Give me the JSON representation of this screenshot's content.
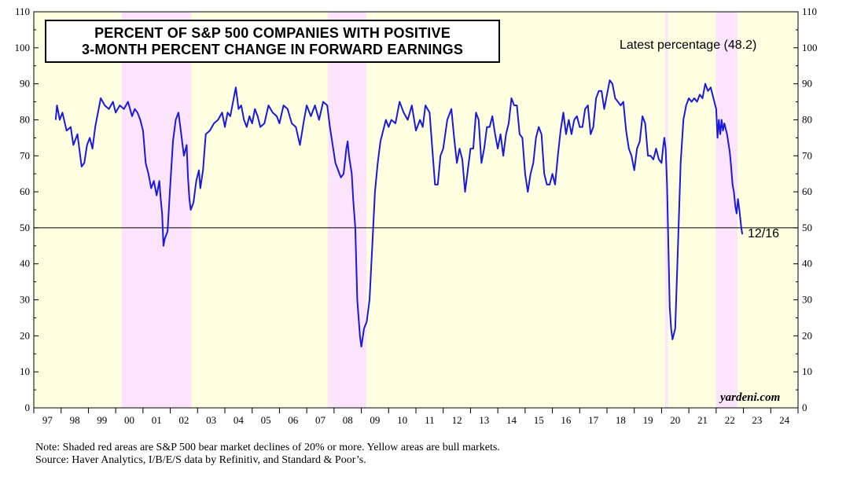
{
  "chart_data": {
    "type": "line",
    "title_lines": [
      "PERCENT OF S&P 500 COMPANIES WITH POSITIVE",
      "3-MONTH PERCENT CHANGE IN FORWARD EARNINGS"
    ],
    "ylim": [
      0,
      110
    ],
    "y_ticks": [
      0,
      10,
      20,
      30,
      40,
      50,
      60,
      70,
      80,
      90,
      100,
      110
    ],
    "x_range": [
      1997,
      2025
    ],
    "x_tick_labels": [
      "97",
      "98",
      "99",
      "00",
      "01",
      "02",
      "03",
      "04",
      "05",
      "06",
      "07",
      "08",
      "09",
      "10",
      "11",
      "12",
      "13",
      "14",
      "15",
      "16",
      "17",
      "18",
      "19",
      "20",
      "21",
      "22",
      "23",
      "24"
    ],
    "reference_line": 50,
    "latest_label": "Latest percentage (48.2)",
    "end_label": "12/16",
    "brand": "yardeni.com",
    "bull_periods": [
      [
        1997.0,
        2000.22
      ],
      [
        2002.77,
        2007.77
      ],
      [
        2009.19,
        2020.13
      ],
      [
        2020.23,
        2021.99
      ],
      [
        2022.78,
        2025.0
      ]
    ],
    "bear_periods": [
      [
        2000.22,
        2002.77
      ],
      [
        2007.77,
        2009.19
      ],
      [
        2020.13,
        2020.23
      ],
      [
        2021.99,
        2022.78
      ]
    ],
    "series": [
      {
        "name": "Percent of S&P 500 companies with positive 3-month change in forward earnings",
        "color": "#1a1adc",
        "points": [
          [
            1997.8,
            80
          ],
          [
            1997.85,
            84
          ],
          [
            1997.95,
            80
          ],
          [
            1998.05,
            82
          ],
          [
            1998.2,
            77
          ],
          [
            1998.35,
            78
          ],
          [
            1998.45,
            73
          ],
          [
            1998.6,
            76
          ],
          [
            1998.75,
            67
          ],
          [
            1998.85,
            68
          ],
          [
            1998.95,
            73
          ],
          [
            1999.05,
            75
          ],
          [
            1999.15,
            72
          ],
          [
            1999.25,
            78
          ],
          [
            1999.45,
            86
          ],
          [
            1999.6,
            84
          ],
          [
            1999.75,
            83
          ],
          [
            1999.9,
            85
          ],
          [
            2000.0,
            82
          ],
          [
            2000.15,
            84
          ],
          [
            2000.3,
            83
          ],
          [
            2000.45,
            85
          ],
          [
            2000.6,
            81
          ],
          [
            2000.7,
            83
          ],
          [
            2000.8,
            82
          ],
          [
            2000.9,
            80
          ],
          [
            2001.0,
            77
          ],
          [
            2001.1,
            68
          ],
          [
            2001.2,
            65
          ],
          [
            2001.3,
            61
          ],
          [
            2001.4,
            63
          ],
          [
            2001.5,
            59
          ],
          [
            2001.6,
            63
          ],
          [
            2001.65,
            58
          ],
          [
            2001.7,
            54
          ],
          [
            2001.75,
            45
          ],
          [
            2001.8,
            47
          ],
          [
            2001.9,
            49
          ],
          [
            2002.0,
            62
          ],
          [
            2002.1,
            74
          ],
          [
            2002.2,
            80
          ],
          [
            2002.3,
            82
          ],
          [
            2002.4,
            76
          ],
          [
            2002.5,
            70
          ],
          [
            2002.6,
            73
          ],
          [
            2002.65,
            64
          ],
          [
            2002.7,
            58
          ],
          [
            2002.75,
            55
          ],
          [
            2002.85,
            57
          ],
          [
            2002.95,
            63
          ],
          [
            2003.05,
            66
          ],
          [
            2003.1,
            61
          ],
          [
            2003.2,
            66
          ],
          [
            2003.3,
            76
          ],
          [
            2003.45,
            77
          ],
          [
            2003.6,
            79
          ],
          [
            2003.75,
            80
          ],
          [
            2003.9,
            82
          ],
          [
            2004.0,
            78
          ],
          [
            2004.1,
            82
          ],
          [
            2004.2,
            81
          ],
          [
            2004.3,
            85
          ],
          [
            2004.4,
            89
          ],
          [
            2004.5,
            83
          ],
          [
            2004.6,
            84
          ],
          [
            2004.7,
            80
          ],
          [
            2004.8,
            78
          ],
          [
            2004.9,
            81
          ],
          [
            2005.0,
            79
          ],
          [
            2005.1,
            83
          ],
          [
            2005.2,
            81
          ],
          [
            2005.3,
            78
          ],
          [
            2005.45,
            79
          ],
          [
            2005.6,
            84
          ],
          [
            2005.75,
            82
          ],
          [
            2005.9,
            81
          ],
          [
            2006.0,
            79
          ],
          [
            2006.15,
            84
          ],
          [
            2006.3,
            83
          ],
          [
            2006.45,
            79
          ],
          [
            2006.6,
            78
          ],
          [
            2006.75,
            73
          ],
          [
            2006.9,
            80
          ],
          [
            2007.0,
            84
          ],
          [
            2007.15,
            81
          ],
          [
            2007.3,
            84
          ],
          [
            2007.45,
            80
          ],
          [
            2007.6,
            85
          ],
          [
            2007.75,
            84
          ],
          [
            2007.85,
            78
          ],
          [
            2007.95,
            73
          ],
          [
            2008.05,
            68
          ],
          [
            2008.15,
            66
          ],
          [
            2008.25,
            64
          ],
          [
            2008.35,
            65
          ],
          [
            2008.45,
            72
          ],
          [
            2008.5,
            74
          ],
          [
            2008.55,
            70
          ],
          [
            2008.65,
            65
          ],
          [
            2008.7,
            58
          ],
          [
            2008.78,
            50
          ],
          [
            2008.85,
            30
          ],
          [
            2008.95,
            20
          ],
          [
            2009.0,
            17
          ],
          [
            2009.1,
            22
          ],
          [
            2009.2,
            24
          ],
          [
            2009.3,
            30
          ],
          [
            2009.4,
            45
          ],
          [
            2009.5,
            60
          ],
          [
            2009.6,
            68
          ],
          [
            2009.7,
            74
          ],
          [
            2009.8,
            77
          ],
          [
            2009.9,
            80
          ],
          [
            2010.0,
            78
          ],
          [
            2010.1,
            80
          ],
          [
            2010.25,
            79
          ],
          [
            2010.4,
            85
          ],
          [
            2010.55,
            82
          ],
          [
            2010.7,
            80
          ],
          [
            2010.85,
            84
          ],
          [
            2011.0,
            77
          ],
          [
            2011.15,
            80
          ],
          [
            2011.25,
            78
          ],
          [
            2011.35,
            84
          ],
          [
            2011.5,
            82
          ],
          [
            2011.6,
            72
          ],
          [
            2011.7,
            62
          ],
          [
            2011.8,
            62
          ],
          [
            2011.9,
            70
          ],
          [
            2012.0,
            72
          ],
          [
            2012.15,
            80
          ],
          [
            2012.3,
            83
          ],
          [
            2012.4,
            75
          ],
          [
            2012.5,
            68
          ],
          [
            2012.6,
            72
          ],
          [
            2012.7,
            69
          ],
          [
            2012.8,
            60
          ],
          [
            2012.9,
            66
          ],
          [
            2013.0,
            72
          ],
          [
            2013.1,
            72
          ],
          [
            2013.2,
            82
          ],
          [
            2013.3,
            80
          ],
          [
            2013.4,
            68
          ],
          [
            2013.5,
            72
          ],
          [
            2013.6,
            78
          ],
          [
            2013.7,
            78
          ],
          [
            2013.8,
            81
          ],
          [
            2013.9,
            76
          ],
          [
            2014.0,
            72
          ],
          [
            2014.1,
            76
          ],
          [
            2014.2,
            70
          ],
          [
            2014.3,
            76
          ],
          [
            2014.4,
            79
          ],
          [
            2014.5,
            86
          ],
          [
            2014.6,
            84
          ],
          [
            2014.7,
            84
          ],
          [
            2014.8,
            76
          ],
          [
            2014.9,
            75
          ],
          [
            2015.0,
            65
          ],
          [
            2015.1,
            60
          ],
          [
            2015.2,
            65
          ],
          [
            2015.3,
            68
          ],
          [
            2015.4,
            75
          ],
          [
            2015.5,
            78
          ],
          [
            2015.6,
            76
          ],
          [
            2015.7,
            65
          ],
          [
            2015.8,
            62
          ],
          [
            2015.9,
            62
          ],
          [
            2016.0,
            65
          ],
          [
            2016.1,
            62
          ],
          [
            2016.2,
            70
          ],
          [
            2016.3,
            77
          ],
          [
            2016.4,
            82
          ],
          [
            2016.5,
            76
          ],
          [
            2016.6,
            80
          ],
          [
            2016.7,
            76
          ],
          [
            2016.8,
            80
          ],
          [
            2016.9,
            81
          ],
          [
            2017.0,
            78
          ],
          [
            2017.1,
            78
          ],
          [
            2017.2,
            83
          ],
          [
            2017.3,
            84
          ],
          [
            2017.4,
            76
          ],
          [
            2017.5,
            78
          ],
          [
            2017.6,
            86
          ],
          [
            2017.7,
            88
          ],
          [
            2017.8,
            88
          ],
          [
            2017.9,
            83
          ],
          [
            2018.0,
            87
          ],
          [
            2018.1,
            91
          ],
          [
            2018.2,
            90
          ],
          [
            2018.3,
            86
          ],
          [
            2018.4,
            85
          ],
          [
            2018.5,
            84
          ],
          [
            2018.6,
            85
          ],
          [
            2018.7,
            77
          ],
          [
            2018.8,
            72
          ],
          [
            2018.9,
            70
          ],
          [
            2019.0,
            66
          ],
          [
            2019.1,
            72
          ],
          [
            2019.2,
            74
          ],
          [
            2019.3,
            81
          ],
          [
            2019.4,
            79
          ],
          [
            2019.5,
            70
          ],
          [
            2019.6,
            70
          ],
          [
            2019.7,
            69
          ],
          [
            2019.8,
            72
          ],
          [
            2019.9,
            69
          ],
          [
            2020.0,
            68
          ],
          [
            2020.05,
            72
          ],
          [
            2020.1,
            75
          ],
          [
            2020.15,
            72
          ],
          [
            2020.2,
            62
          ],
          [
            2020.25,
            45
          ],
          [
            2020.3,
            28
          ],
          [
            2020.35,
            22
          ],
          [
            2020.4,
            19
          ],
          [
            2020.5,
            22
          ],
          [
            2020.6,
            45
          ],
          [
            2020.7,
            68
          ],
          [
            2020.8,
            80
          ],
          [
            2020.9,
            84
          ],
          [
            2021.0,
            86
          ],
          [
            2021.1,
            85
          ],
          [
            2021.2,
            86
          ],
          [
            2021.3,
            85
          ],
          [
            2021.4,
            87
          ],
          [
            2021.5,
            86
          ],
          [
            2021.6,
            90
          ],
          [
            2021.7,
            88
          ],
          [
            2021.8,
            89
          ],
          [
            2021.9,
            86
          ],
          [
            2022.0,
            83
          ],
          [
            2022.05,
            75
          ],
          [
            2022.1,
            80
          ],
          [
            2022.15,
            76
          ],
          [
            2022.2,
            80
          ],
          [
            2022.25,
            77
          ],
          [
            2022.3,
            79
          ],
          [
            2022.4,
            76
          ],
          [
            2022.5,
            71
          ],
          [
            2022.55,
            67
          ],
          [
            2022.6,
            62
          ],
          [
            2022.65,
            60
          ],
          [
            2022.7,
            56
          ],
          [
            2022.75,
            54
          ],
          [
            2022.8,
            58
          ],
          [
            2022.85,
            55
          ],
          [
            2022.92,
            50
          ],
          [
            2022.96,
            48.2
          ]
        ]
      }
    ]
  },
  "footnotes": [
    "Note: Shaded red areas are S&P 500 bear market declines of 20% or more. Yellow areas are bull markets.",
    "Source: Haver Analytics, I/B/E/S data by Refinitiv, and Standard & Poor’s."
  ],
  "colors": {
    "bull": "#fefee1",
    "bear": "#fce4fc",
    "line": "#1a1adc",
    "axis": "#000000"
  }
}
